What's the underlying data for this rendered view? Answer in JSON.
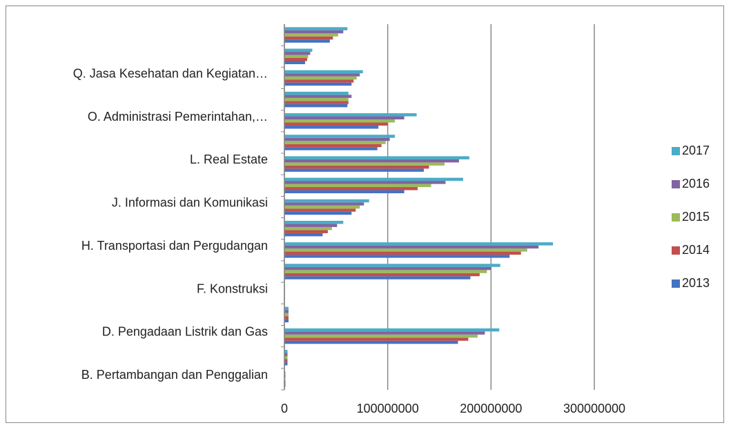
{
  "chart_data": {
    "type": "barh",
    "categories": [
      null,
      "B. Pertambangan dan Penggalian",
      null,
      "D. Pengadaan Listrik dan Gas",
      null,
      "F. Konstruksi",
      null,
      "H. Transportasi dan Pergudangan",
      null,
      "J. Informasi dan Komunikasi",
      null,
      "L. Real Estate",
      null,
      "O. Administrasi Pemerintahan,…",
      null,
      "Q. Jasa Kesehatan dan Kegiatan…",
      null
    ],
    "series": [
      {
        "name": "2013",
        "color": "#4472c4",
        "values": [
          1000000,
          3000000,
          168000000,
          4000000,
          500000,
          180000000,
          218000000,
          37000000,
          65000000,
          116000000,
          135000000,
          90000000,
          91000000,
          61000000,
          65000000,
          20000000,
          44000000
        ]
      },
      {
        "name": "2014",
        "color": "#c0504d",
        "values": [
          1000000,
          3000000,
          178000000,
          4000000,
          500000,
          189000000,
          229000000,
          42000000,
          69000000,
          129000000,
          140000000,
          94000000,
          100000000,
          62000000,
          67000000,
          22000000,
          47000000
        ]
      },
      {
        "name": "2015",
        "color": "#9bbb59",
        "values": [
          1000000,
          3000000,
          187000000,
          4000000,
          500000,
          196000000,
          235000000,
          46000000,
          73000000,
          142000000,
          155000000,
          98000000,
          107000000,
          62000000,
          70000000,
          23000000,
          52000000
        ]
      },
      {
        "name": "2016",
        "color": "#8064a2",
        "values": [
          1000000,
          3000000,
          194000000,
          4000000,
          500000,
          200000000,
          246000000,
          51000000,
          77000000,
          156000000,
          169000000,
          102000000,
          116000000,
          65000000,
          73000000,
          25000000,
          57000000
        ]
      },
      {
        "name": "2017",
        "color": "#4bacc6",
        "values": [
          1000000,
          3000000,
          208000000,
          4000000,
          500000,
          209000000,
          260000000,
          57000000,
          82000000,
          173000000,
          179000000,
          107000000,
          128000000,
          62000000,
          76000000,
          27000000,
          61000000
        ]
      }
    ],
    "xlim": [
      0,
      300000000
    ],
    "xticks": [
      0,
      100000000,
      200000000,
      300000000
    ],
    "grid": true,
    "legend": "right"
  }
}
